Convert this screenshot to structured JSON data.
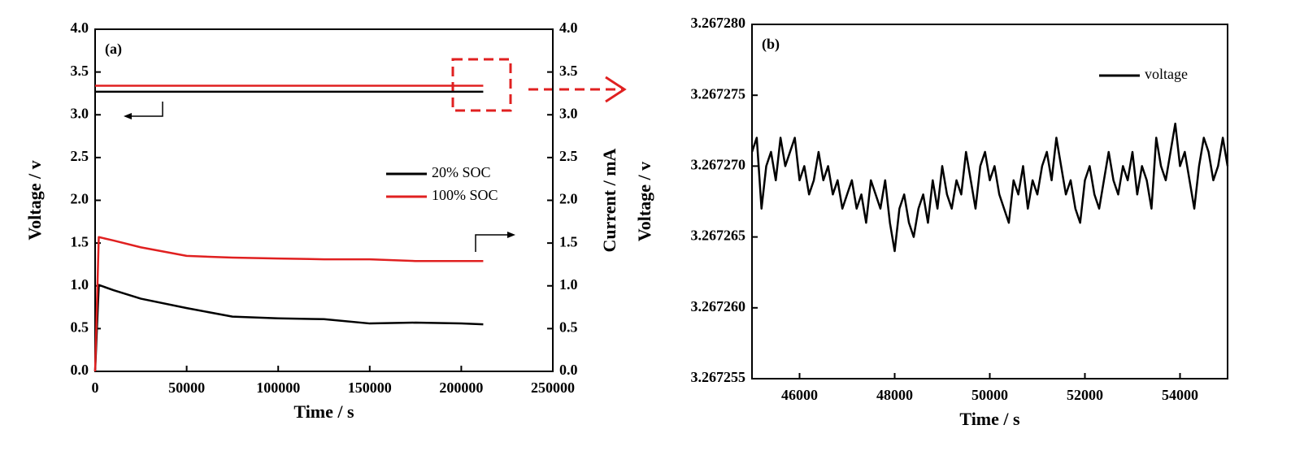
{
  "chart_data": [
    {
      "type": "line",
      "label": "(a)",
      "xlabel": "Time / s",
      "ylabel": "Voltage / v",
      "y2label": "Current / mA",
      "legend": "center right",
      "x": [
        0,
        2000,
        10000,
        25000,
        50000,
        75000,
        100000,
        125000,
        150000,
        175000,
        200000,
        212000
      ],
      "xlim": [
        0,
        250000
      ],
      "xticks": [
        0,
        50000,
        100000,
        150000,
        200000,
        250000
      ],
      "ylim": [
        0,
        4
      ],
      "yticks": [
        {
          "value": 0,
          "label": "0.0"
        },
        0.5,
        {
          "value": 1,
          "label": "1.0"
        },
        1.5,
        {
          "value": 2,
          "label": "2.0"
        },
        2.5,
        {
          "value": 3,
          "label": "3.0"
        },
        3.5,
        {
          "value": 4,
          "label": "4.0"
        }
      ],
      "y2lim": [
        0,
        4
      ],
      "y2ticks": [
        {
          "value": 0,
          "label": "0.0"
        },
        0.5,
        {
          "value": 1,
          "label": "1.0"
        },
        1.5,
        {
          "value": 2,
          "label": "2.0"
        },
        2.5,
        {
          "value": 3,
          "label": "3.0"
        },
        3.5,
        {
          "value": 4,
          "label": "4.0"
        }
      ],
      "series": [
        {
          "name": "20% SOC",
          "color": "#000000",
          "axis": "y2",
          "values": [
            0,
            1.01,
            0.95,
            0.85,
            0.74,
            0.64,
            0.62,
            0.61,
            0.56,
            0.57,
            0.56,
            0.55
          ],
          "voltage_values": [
            3.27,
            3.27,
            3.27,
            3.27,
            3.27,
            3.27,
            3.27,
            3.27,
            3.27,
            3.27,
            3.27,
            3.27
          ]
        },
        {
          "name": "100% SOC",
          "color": "#e02020",
          "axis": "y2",
          "values": [
            0,
            1.57,
            1.53,
            1.45,
            1.35,
            1.33,
            1.32,
            1.31,
            1.31,
            1.29,
            1.29,
            1.29
          ],
          "voltage_values": [
            3.34,
            3.34,
            3.34,
            3.34,
            3.34,
            3.34,
            3.34,
            3.34,
            3.34,
            3.34,
            3.34,
            3.34
          ]
        }
      ]
    },
    {
      "type": "line",
      "label": "(b)",
      "xlabel": "Time / s",
      "ylabel": "Voltage / v",
      "legend": "upper right",
      "x": [
        45000,
        45100,
        45200,
        45300,
        45400,
        45500,
        45600,
        45700,
        45800,
        45900,
        46000,
        46100,
        46200,
        46300,
        46400,
        46500,
        46600,
        46700,
        46800,
        46900,
        47000,
        47100,
        47200,
        47300,
        47400,
        47500,
        47600,
        47700,
        47800,
        47900,
        48000,
        48100,
        48200,
        48300,
        48400,
        48500,
        48600,
        48700,
        48800,
        48900,
        49000,
        49100,
        49200,
        49300,
        49400,
        49500,
        49600,
        49700,
        49800,
        49900,
        50000,
        50100,
        50200,
        50300,
        50400,
        50500,
        50600,
        50700,
        50800,
        50900,
        51000,
        51100,
        51200,
        51300,
        51400,
        51500,
        51600,
        51700,
        51800,
        51900,
        52000,
        52100,
        52200,
        52300,
        52400,
        52500,
        52600,
        52700,
        52800,
        52900,
        53000,
        53100,
        53200,
        53300,
        53400,
        53500,
        53600,
        53700,
        53800,
        53900,
        54000,
        54100,
        54200,
        54300,
        54400,
        54500,
        54600,
        54700,
        54800,
        54900,
        55000
      ],
      "xlim": [
        45000,
        55000
      ],
      "xticks": [
        46000,
        48000,
        50000,
        52000,
        54000
      ],
      "ylim": [
        3.267255,
        3.26728
      ],
      "yticks": [
        3.267255,
        {
          "value": 3.26726,
          "label": "3.267260"
        },
        3.267265,
        {
          "value": 3.26727,
          "label": "3.267270"
        },
        3.267275,
        {
          "value": 3.26728,
          "label": "3.267280"
        }
      ],
      "series": [
        {
          "name": "voltage",
          "color": "#000000",
          "values": [
            3.267271,
            3.267272,
            3.267267,
            3.26727,
            3.267271,
            3.267269,
            3.267272,
            3.26727,
            3.267271,
            3.267272,
            3.267269,
            3.26727,
            3.267268,
            3.267269,
            3.267271,
            3.267269,
            3.26727,
            3.267268,
            3.267269,
            3.267267,
            3.267268,
            3.267269,
            3.267267,
            3.267268,
            3.267266,
            3.267269,
            3.267268,
            3.267267,
            3.267269,
            3.267266,
            3.267264,
            3.267267,
            3.267268,
            3.267266,
            3.267265,
            3.267267,
            3.267268,
            3.267266,
            3.267269,
            3.267267,
            3.26727,
            3.267268,
            3.267267,
            3.267269,
            3.267268,
            3.267271,
            3.267269,
            3.267267,
            3.26727,
            3.267271,
            3.267269,
            3.26727,
            3.267268,
            3.267267,
            3.267266,
            3.267269,
            3.267268,
            3.26727,
            3.267267,
            3.267269,
            3.267268,
            3.26727,
            3.267271,
            3.267269,
            3.267272,
            3.26727,
            3.267268,
            3.267269,
            3.267267,
            3.267266,
            3.267269,
            3.26727,
            3.267268,
            3.267267,
            3.267269,
            3.267271,
            3.267269,
            3.267268,
            3.26727,
            3.267269,
            3.267271,
            3.267268,
            3.26727,
            3.267269,
            3.267267,
            3.267272,
            3.26727,
            3.267269,
            3.267271,
            3.267273,
            3.26727,
            3.267271,
            3.267269,
            3.267267,
            3.26727,
            3.267272,
            3.267271,
            3.267269,
            3.26727,
            3.267272,
            3.26727
          ]
        }
      ]
    }
  ]
}
